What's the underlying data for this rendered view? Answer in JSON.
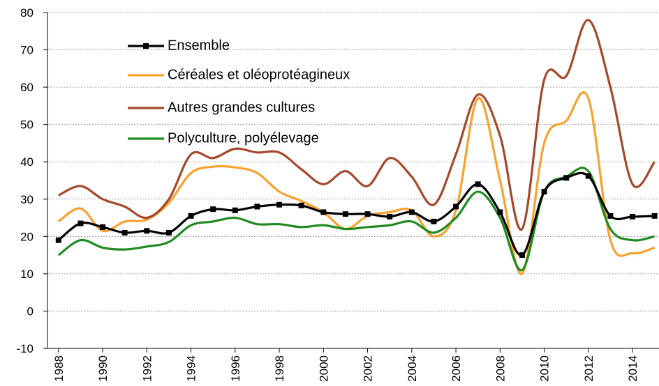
{
  "chart_data": {
    "type": "line",
    "x": [
      1988,
      1989,
      1990,
      1991,
      1992,
      1993,
      1994,
      1995,
      1996,
      1997,
      1998,
      1999,
      2000,
      2001,
      2002,
      2003,
      2004,
      2005,
      2006,
      2007,
      2008,
      2009,
      2010,
      2011,
      2012,
      2013,
      2014,
      2015
    ],
    "xlim": [
      1987.5,
      2015.2
    ],
    "xticks": [
      1988,
      1990,
      1992,
      1994,
      1996,
      1998,
      2000,
      2002,
      2004,
      2006,
      2008,
      2010,
      2012,
      2014
    ],
    "ylim": [
      -10,
      80
    ],
    "yticks": [
      -10,
      0,
      10,
      20,
      30,
      40,
      50,
      60,
      70,
      80
    ],
    "grid": true,
    "legend": "upper left",
    "series": [
      {
        "name": "Ensemble",
        "color": "#000000",
        "markers": true,
        "values": [
          19,
          23.5,
          22.5,
          21,
          21.5,
          21,
          25.5,
          27.3,
          27,
          28,
          28.5,
          28.3,
          26.5,
          26,
          26,
          25.3,
          26.5,
          24,
          28,
          34,
          26.5,
          15,
          32,
          35.7,
          36.2,
          25.5,
          25.3,
          25.5
        ]
      },
      {
        "name": "Céréales et oléoprotéagineux",
        "color": "#f9a12e",
        "markers": false,
        "values": [
          24,
          27.5,
          21.5,
          24,
          24.5,
          29,
          37,
          38.7,
          38.5,
          37,
          32,
          29.5,
          26.5,
          22,
          25.5,
          26.5,
          27,
          20,
          27,
          57,
          35,
          10,
          45,
          51,
          57,
          19,
          15.5,
          17
        ]
      },
      {
        "name": "Autres grandes cultures",
        "color": "#a5472a",
        "markers": false,
        "values": [
          31,
          33.5,
          30,
          28,
          25,
          30,
          42,
          41,
          43.5,
          42.5,
          42.5,
          38,
          34,
          37.5,
          33.5,
          41,
          36,
          28.5,
          42,
          58,
          47,
          22,
          62,
          63,
          78,
          60,
          34,
          40
        ]
      },
      {
        "name": "Polyculture, polyélevage",
        "color": "#1f8a1f",
        "markers": false,
        "values": [
          15,
          19,
          17,
          16.5,
          17.3,
          18.5,
          23,
          24,
          25,
          23.3,
          23.3,
          22.5,
          23,
          22,
          22.5,
          23,
          24,
          21,
          25,
          32,
          25,
          11,
          32,
          36,
          37.5,
          22,
          19,
          20
        ]
      }
    ]
  }
}
